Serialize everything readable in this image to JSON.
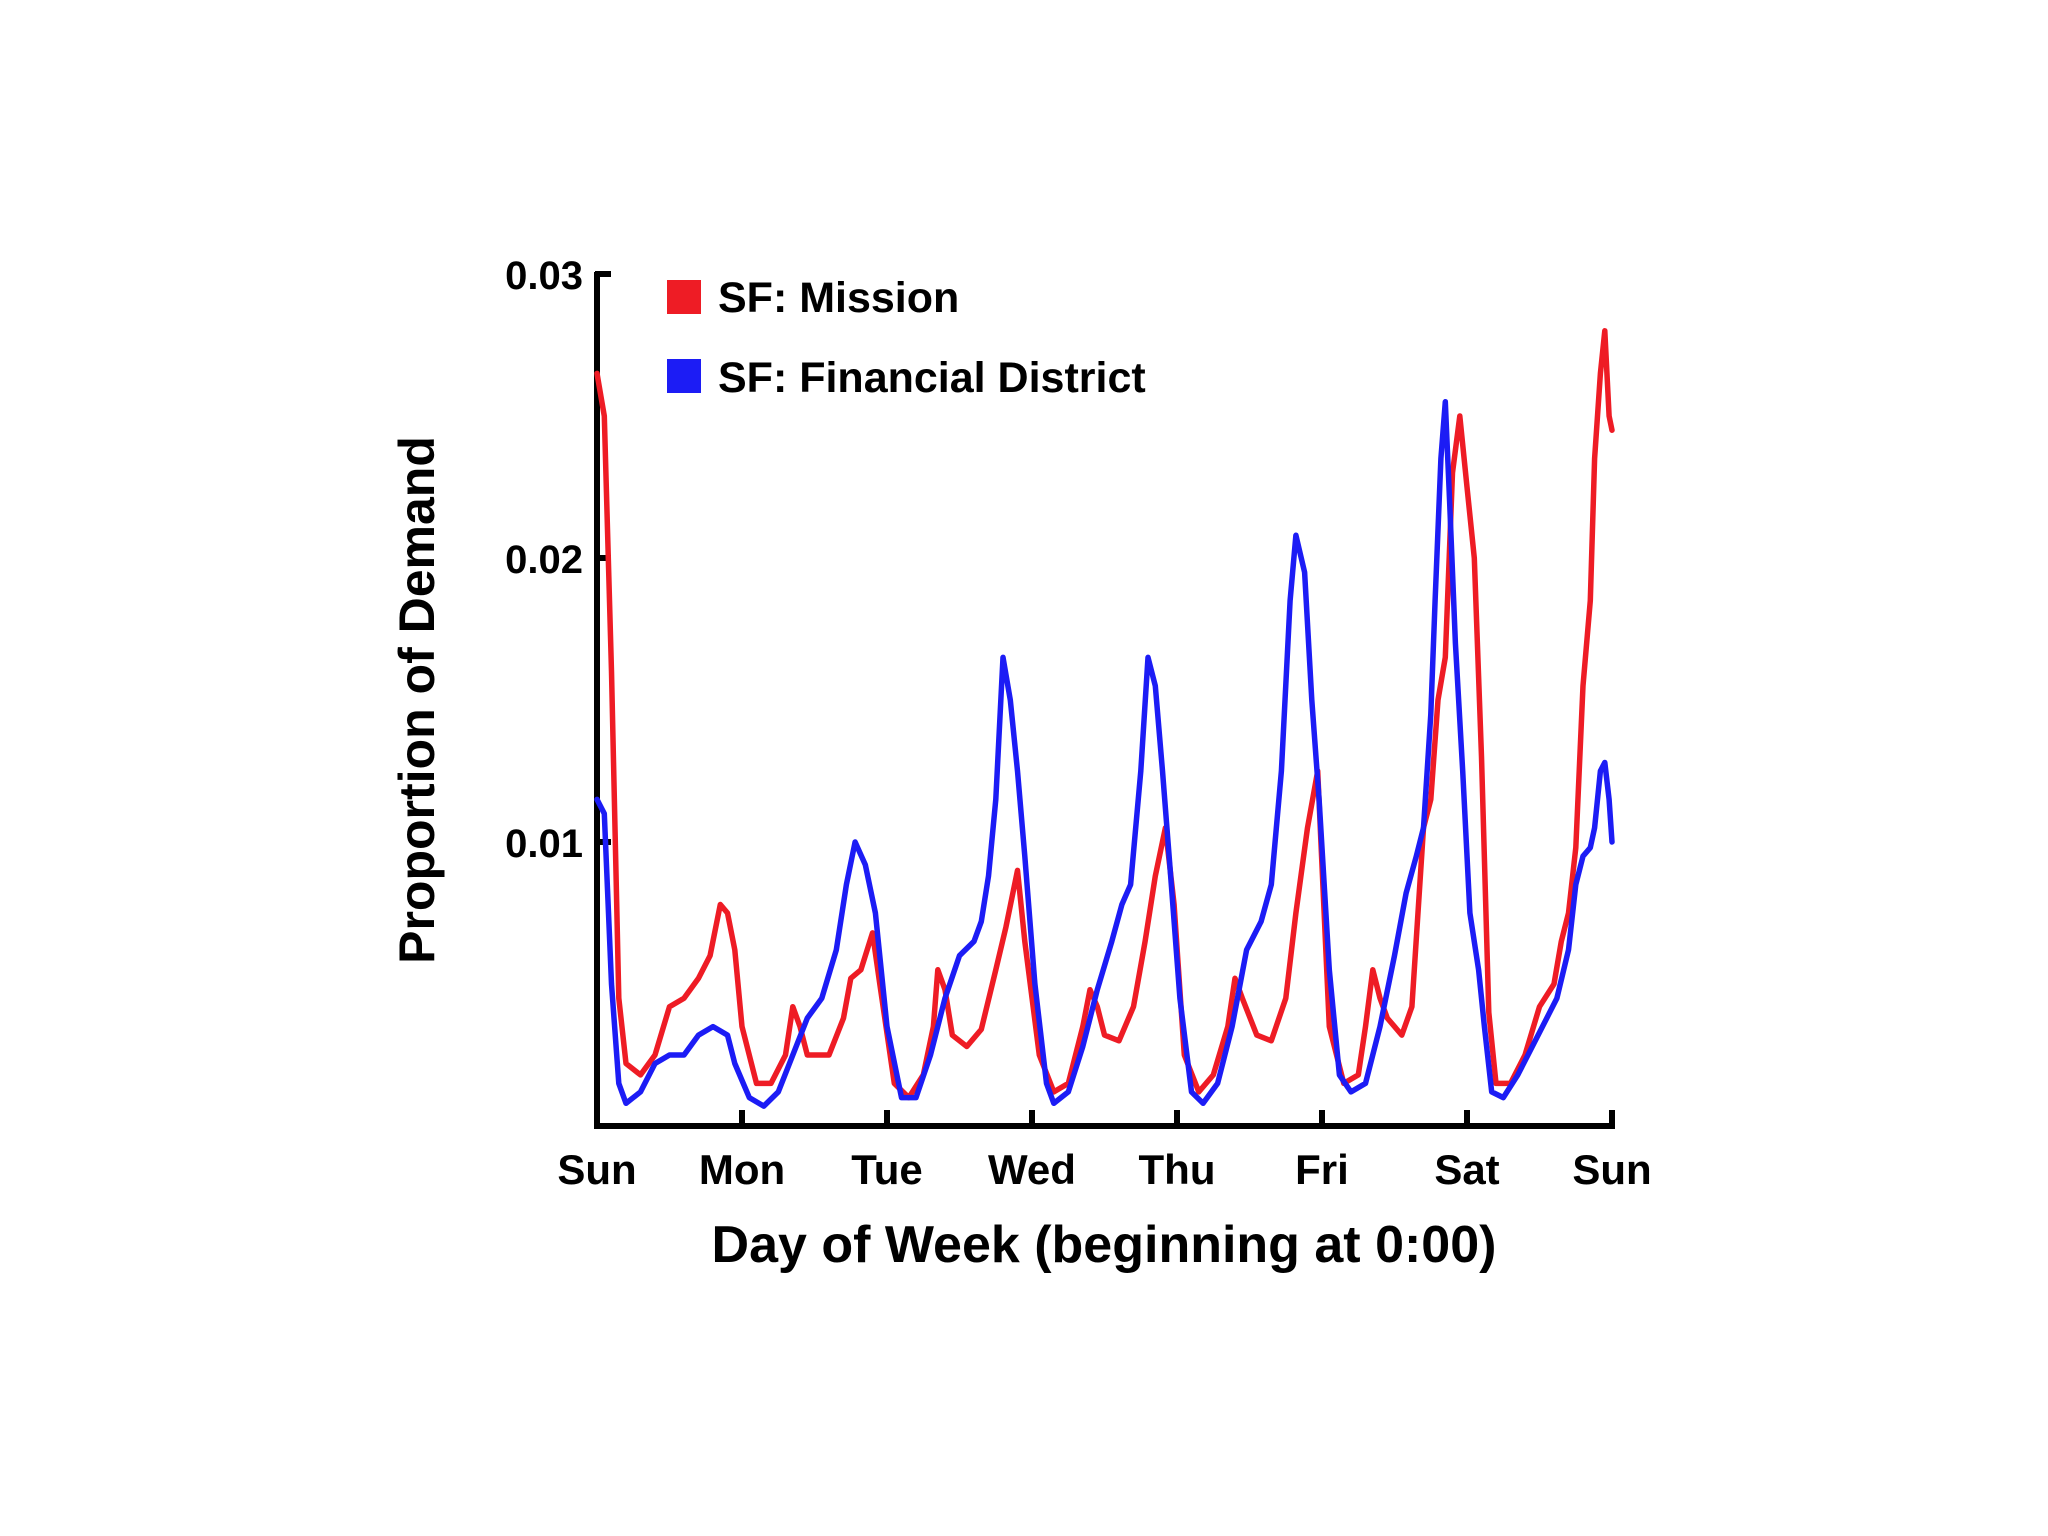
{
  "chart_data": {
    "type": "line",
    "title": "",
    "xlabel": "Day of Week (beginning at 0:00)",
    "ylabel": "Proportion of Demand",
    "x_tick_labels": [
      "Sun",
      "Mon",
      "Tue",
      "Wed",
      "Thu",
      "Fri",
      "Sat",
      "Sun"
    ],
    "y_tick_labels": [
      "0.01",
      "0.02",
      "0.03"
    ],
    "y_ticks": [
      0.01,
      0.02,
      0.03
    ],
    "xlim": [
      0,
      7
    ],
    "ylim": [
      0,
      0.03
    ],
    "grid": false,
    "legend_position": "top-left",
    "series": [
      {
        "name": "SF: Mission",
        "color": "#ee1c25",
        "points": [
          [
            0.0,
            0.0265
          ],
          [
            0.05,
            0.025
          ],
          [
            0.1,
            0.016
          ],
          [
            0.15,
            0.0045
          ],
          [
            0.2,
            0.0022
          ],
          [
            0.3,
            0.0018
          ],
          [
            0.4,
            0.0025
          ],
          [
            0.5,
            0.0042
          ],
          [
            0.6,
            0.0045
          ],
          [
            0.7,
            0.0052
          ],
          [
            0.78,
            0.006
          ],
          [
            0.85,
            0.0078
          ],
          [
            0.9,
            0.0075
          ],
          [
            0.95,
            0.0062
          ],
          [
            1.0,
            0.0035
          ],
          [
            1.1,
            0.0015
          ],
          [
            1.2,
            0.0015
          ],
          [
            1.3,
            0.0025
          ],
          [
            1.35,
            0.0042
          ],
          [
            1.4,
            0.0035
          ],
          [
            1.45,
            0.0025
          ],
          [
            1.6,
            0.0025
          ],
          [
            1.7,
            0.0038
          ],
          [
            1.75,
            0.0052
          ],
          [
            1.82,
            0.0055
          ],
          [
            1.9,
            0.0068
          ],
          [
            1.95,
            0.005
          ],
          [
            2.05,
            0.0015
          ],
          [
            2.15,
            0.001
          ],
          [
            2.25,
            0.0018
          ],
          [
            2.32,
            0.0035
          ],
          [
            2.35,
            0.0055
          ],
          [
            2.4,
            0.0048
          ],
          [
            2.45,
            0.0032
          ],
          [
            2.55,
            0.0028
          ],
          [
            2.65,
            0.0034
          ],
          [
            2.75,
            0.0055
          ],
          [
            2.82,
            0.007
          ],
          [
            2.9,
            0.009
          ],
          [
            2.95,
            0.0065
          ],
          [
            3.05,
            0.0025
          ],
          [
            3.15,
            0.0012
          ],
          [
            3.25,
            0.0015
          ],
          [
            3.35,
            0.0035
          ],
          [
            3.4,
            0.0048
          ],
          [
            3.45,
            0.0042
          ],
          [
            3.5,
            0.0032
          ],
          [
            3.6,
            0.003
          ],
          [
            3.7,
            0.0042
          ],
          [
            3.78,
            0.0065
          ],
          [
            3.85,
            0.0088
          ],
          [
            3.92,
            0.0105
          ],
          [
            3.98,
            0.0078
          ],
          [
            4.05,
            0.0025
          ],
          [
            4.15,
            0.0012
          ],
          [
            4.25,
            0.0018
          ],
          [
            4.35,
            0.0035
          ],
          [
            4.4,
            0.0052
          ],
          [
            4.45,
            0.0045
          ],
          [
            4.55,
            0.0032
          ],
          [
            4.65,
            0.003
          ],
          [
            4.75,
            0.0045
          ],
          [
            4.82,
            0.0075
          ],
          [
            4.9,
            0.0105
          ],
          [
            4.97,
            0.0125
          ],
          [
            5.05,
            0.0035
          ],
          [
            5.15,
            0.0015
          ],
          [
            5.25,
            0.0018
          ],
          [
            5.3,
            0.0035
          ],
          [
            5.35,
            0.0055
          ],
          [
            5.4,
            0.0045
          ],
          [
            5.45,
            0.0038
          ],
          [
            5.55,
            0.0032
          ],
          [
            5.62,
            0.0042
          ],
          [
            5.7,
            0.0105
          ],
          [
            5.75,
            0.0115
          ],
          [
            5.8,
            0.015
          ],
          [
            5.85,
            0.0165
          ],
          [
            5.9,
            0.023
          ],
          [
            5.95,
            0.025
          ],
          [
            6.0,
            0.0225
          ],
          [
            6.05,
            0.02
          ],
          [
            6.1,
            0.013
          ],
          [
            6.15,
            0.004
          ],
          [
            6.2,
            0.0015
          ],
          [
            6.3,
            0.0015
          ],
          [
            6.4,
            0.0025
          ],
          [
            6.5,
            0.0042
          ],
          [
            6.6,
            0.005
          ],
          [
            6.65,
            0.0065
          ],
          [
            6.7,
            0.0075
          ],
          [
            6.75,
            0.0098
          ],
          [
            6.8,
            0.0155
          ],
          [
            6.85,
            0.0185
          ],
          [
            6.88,
            0.0235
          ],
          [
            6.92,
            0.0265
          ],
          [
            6.95,
            0.028
          ],
          [
            6.98,
            0.025
          ],
          [
            7.0,
            0.0245
          ]
        ]
      },
      {
        "name": "SF: Financial District",
        "color": "#1c1cf5",
        "points": [
          [
            0.0,
            0.0115
          ],
          [
            0.05,
            0.011
          ],
          [
            0.1,
            0.005
          ],
          [
            0.15,
            0.0015
          ],
          [
            0.2,
            0.0008
          ],
          [
            0.3,
            0.0012
          ],
          [
            0.4,
            0.0022
          ],
          [
            0.5,
            0.0025
          ],
          [
            0.6,
            0.0025
          ],
          [
            0.7,
            0.0032
          ],
          [
            0.8,
            0.0035
          ],
          [
            0.9,
            0.0032
          ],
          [
            0.95,
            0.0022
          ],
          [
            1.05,
            0.001
          ],
          [
            1.15,
            0.0007
          ],
          [
            1.25,
            0.0012
          ],
          [
            1.35,
            0.0025
          ],
          [
            1.45,
            0.0038
          ],
          [
            1.55,
            0.0045
          ],
          [
            1.65,
            0.0062
          ],
          [
            1.72,
            0.0085
          ],
          [
            1.78,
            0.01
          ],
          [
            1.85,
            0.0092
          ],
          [
            1.92,
            0.0075
          ],
          [
            2.0,
            0.0035
          ],
          [
            2.1,
            0.001
          ],
          [
            2.2,
            0.001
          ],
          [
            2.3,
            0.0025
          ],
          [
            2.4,
            0.0045
          ],
          [
            2.5,
            0.006
          ],
          [
            2.6,
            0.0065
          ],
          [
            2.65,
            0.0072
          ],
          [
            2.7,
            0.0088
          ],
          [
            2.75,
            0.0115
          ],
          [
            2.8,
            0.0165
          ],
          [
            2.85,
            0.015
          ],
          [
            2.9,
            0.0125
          ],
          [
            2.95,
            0.0095
          ],
          [
            3.02,
            0.005
          ],
          [
            3.1,
            0.0015
          ],
          [
            3.15,
            0.0008
          ],
          [
            3.25,
            0.0012
          ],
          [
            3.35,
            0.0028
          ],
          [
            3.45,
            0.0048
          ],
          [
            3.55,
            0.0065
          ],
          [
            3.62,
            0.0078
          ],
          [
            3.68,
            0.0085
          ],
          [
            3.75,
            0.0125
          ],
          [
            3.8,
            0.0165
          ],
          [
            3.85,
            0.0155
          ],
          [
            3.9,
            0.0125
          ],
          [
            3.95,
            0.0092
          ],
          [
            4.02,
            0.0045
          ],
          [
            4.1,
            0.0012
          ],
          [
            4.18,
            0.0008
          ],
          [
            4.28,
            0.0015
          ],
          [
            4.38,
            0.0035
          ],
          [
            4.48,
            0.0062
          ],
          [
            4.58,
            0.0072
          ],
          [
            4.65,
            0.0085
          ],
          [
            4.72,
            0.0125
          ],
          [
            4.78,
            0.0185
          ],
          [
            4.82,
            0.0208
          ],
          [
            4.88,
            0.0195
          ],
          [
            4.93,
            0.015
          ],
          [
            4.98,
            0.0115
          ],
          [
            5.05,
            0.0055
          ],
          [
            5.12,
            0.0018
          ],
          [
            5.2,
            0.0012
          ],
          [
            5.3,
            0.0015
          ],
          [
            5.4,
            0.0035
          ],
          [
            5.5,
            0.006
          ],
          [
            5.58,
            0.0082
          ],
          [
            5.65,
            0.0095
          ],
          [
            5.7,
            0.0105
          ],
          [
            5.75,
            0.0145
          ],
          [
            5.78,
            0.0185
          ],
          [
            5.82,
            0.0235
          ],
          [
            5.85,
            0.0255
          ],
          [
            5.88,
            0.022
          ],
          [
            5.92,
            0.017
          ],
          [
            5.97,
            0.0125
          ],
          [
            6.02,
            0.0075
          ],
          [
            6.08,
            0.0055
          ],
          [
            6.12,
            0.0035
          ],
          [
            6.17,
            0.0012
          ],
          [
            6.25,
            0.001
          ],
          [
            6.35,
            0.0018
          ],
          [
            6.45,
            0.0028
          ],
          [
            6.55,
            0.0038
          ],
          [
            6.62,
            0.0045
          ],
          [
            6.7,
            0.0062
          ],
          [
            6.75,
            0.0085
          ],
          [
            6.8,
            0.0095
          ],
          [
            6.85,
            0.0098
          ],
          [
            6.88,
            0.0105
          ],
          [
            6.92,
            0.0125
          ],
          [
            6.95,
            0.0128
          ],
          [
            6.98,
            0.0115
          ],
          [
            7.0,
            0.01
          ]
        ]
      }
    ]
  }
}
